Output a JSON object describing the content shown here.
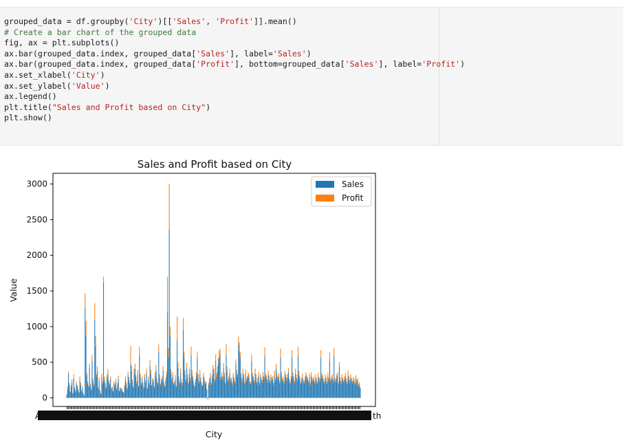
{
  "code": {
    "lines": [
      [
        {
          "t": "grouped_data = df.groupby(",
          "c": "n"
        },
        {
          "t": "'City'",
          "c": "s"
        },
        {
          "t": ")[[",
          "c": "n"
        },
        {
          "t": "'Sales'",
          "c": "s"
        },
        {
          "t": ", ",
          "c": "n"
        },
        {
          "t": "'Profit'",
          "c": "s"
        },
        {
          "t": "]].mean()",
          "c": "n"
        }
      ],
      [
        {
          "t": "# Create a bar chart of the grouped data",
          "c": "c"
        }
      ],
      [
        {
          "t": "fig, ax = plt.subplots()",
          "c": "n"
        }
      ],
      [
        {
          "t": "ax.bar(grouped_data.index, grouped_data[",
          "c": "n"
        },
        {
          "t": "'Sales'",
          "c": "s"
        },
        {
          "t": "], label=",
          "c": "n"
        },
        {
          "t": "'Sales'",
          "c": "s"
        },
        {
          "t": ")",
          "c": "n"
        }
      ],
      [
        {
          "t": "ax.bar(grouped_data.index, grouped_data[",
          "c": "n"
        },
        {
          "t": "'Profit'",
          "c": "s"
        },
        {
          "t": "], bottom=grouped_data[",
          "c": "n"
        },
        {
          "t": "'Sales'",
          "c": "s"
        },
        {
          "t": "], label=",
          "c": "n"
        },
        {
          "t": "'Profit'",
          "c": "s"
        },
        {
          "t": ")",
          "c": "n"
        }
      ],
      [
        {
          "t": "ax.set_xlabel(",
          "c": "n"
        },
        {
          "t": "'City'",
          "c": "s"
        },
        {
          "t": ")",
          "c": "n"
        }
      ],
      [
        {
          "t": "ax.set_ylabel(",
          "c": "n"
        },
        {
          "t": "'Value'",
          "c": "s"
        },
        {
          "t": ")",
          "c": "n"
        }
      ],
      [
        {
          "t": "ax.legend()",
          "c": "n"
        }
      ],
      [
        {
          "t": "plt.title(",
          "c": "n"
        },
        {
          "t": "\"Sales and Profit based on City\"",
          "c": "s"
        },
        {
          "t": ")",
          "c": "n"
        }
      ],
      [
        {
          "t": "plt.show()",
          "c": "n"
        }
      ]
    ]
  },
  "chart_data": {
    "type": "bar",
    "stacked": true,
    "title": "Sales and Profit based on City",
    "xlabel": "City",
    "ylabel": "Value",
    "ylim": [
      -120,
      3150
    ],
    "yticks": [
      0,
      500,
      1000,
      1500,
      2000,
      2500,
      3000
    ],
    "legend": "top-right",
    "series": [
      {
        "name": "Sales",
        "color": "#1f77b4"
      },
      {
        "name": "Profit",
        "color": "#ff7f0e"
      }
    ],
    "xtick_text_left": "A",
    "xtick_text_right": "th",
    "sales": [
      40,
      120,
      340,
      190,
      80,
      150,
      220,
      60,
      270,
      130,
      90,
      200,
      160,
      110,
      70,
      250,
      180,
      95,
      140,
      60,
      30,
      1260,
      880,
      310,
      200,
      150,
      420,
      170,
      110,
      520,
      230,
      160,
      1090,
      720,
      290,
      380,
      130,
      240,
      90,
      50,
      290,
      200,
      1620,
      260,
      190,
      130,
      280,
      340,
      220,
      170,
      260,
      120,
      140,
      90,
      200,
      160,
      230,
      110,
      180,
      260,
      90,
      130,
      120,
      110,
      80,
      70,
      150,
      260,
      190,
      120,
      320,
      250,
      180,
      480,
      380,
      220,
      140,
      350,
      410,
      280,
      200,
      330,
      150,
      600,
      290,
      180,
      260,
      190,
      130,
      280,
      210,
      350,
      120,
      260,
      180,
      450,
      330,
      160,
      240,
      220,
      140,
      310,
      390,
      230,
      180,
      640,
      280,
      170,
      220,
      260,
      380,
      190,
      150,
      240,
      320,
      1200,
      570,
      2360,
      860,
      340,
      240,
      310,
      180,
      200,
      270,
      150,
      810,
      420,
      260,
      190,
      350,
      220,
      180,
      950,
      560,
      330,
      220,
      420,
      280,
      190,
      350,
      240,
      600,
      330,
      260,
      190,
      150,
      220,
      310,
      550,
      280,
      200,
      330,
      240,
      180,
      160,
      300,
      250,
      190,
      200,
      110,
      -20,
      180,
      240,
      300,
      180,
      270,
      400,
      350,
      220,
      520,
      290,
      370,
      480,
      560,
      600,
      250,
      310,
      260,
      420,
      300,
      190,
      600,
      370,
      220,
      260,
      350,
      230,
      240,
      180,
      300,
      250,
      200,
      470,
      330,
      290,
      750,
      660,
      560,
      290,
      220,
      350,
      280,
      190,
      340,
      230,
      260,
      310,
      280,
      200,
      190,
      520,
      300,
      260,
      210,
      350,
      280,
      190,
      240,
      310,
      180,
      280,
      250,
      210,
      310,
      260,
      580,
      290,
      270,
      210,
      330,
      260,
      200,
      280,
      250,
      260,
      180,
      320,
      230,
      410,
      290,
      260,
      290,
      200,
      570,
      310,
      230,
      260,
      200,
      320,
      280,
      240,
      290,
      360,
      230,
      190,
      260,
      560,
      310,
      260,
      200,
      350,
      280,
      230,
      600,
      320,
      260,
      190,
      240,
      290,
      220,
      200,
      260,
      310,
      270,
      240,
      210,
      290,
      180,
      310,
      250,
      230,
      260,
      200,
      280,
      240,
      190,
      300,
      250,
      230,
      560,
      300,
      270,
      230,
      200,
      280,
      250,
      190,
      300,
      240,
      520,
      220,
      260,
      280,
      210,
      590,
      240,
      220,
      280,
      310,
      190,
      430,
      250,
      200,
      280,
      240,
      210,
      260,
      300,
      230,
      190,
      320,
      260,
      210,
      280,
      240,
      200,
      250,
      230,
      180,
      270,
      210,
      240,
      160,
      190,
      130
    ],
    "profit": [
      10,
      40,
      30,
      20,
      10,
      30,
      40,
      10,
      60,
      20,
      10,
      30,
      20,
      20,
      10,
      50,
      30,
      10,
      20,
      10,
      5,
      210,
      200,
      40,
      30,
      20,
      60,
      30,
      20,
      80,
      40,
      30,
      240,
      150,
      40,
      60,
      20,
      40,
      20,
      10,
      50,
      30,
      80,
      40,
      30,
      20,
      40,
      60,
      30,
      30,
      40,
      20,
      20,
      10,
      30,
      30,
      40,
      20,
      30,
      50,
      10,
      20,
      20,
      20,
      10,
      10,
      30,
      40,
      30,
      20,
      50,
      40,
      30,
      250,
      70,
      40,
      20,
      60,
      70,
      40,
      30,
      60,
      20,
      120,
      50,
      30,
      40,
      30,
      20,
      50,
      30,
      60,
      20,
      40,
      30,
      80,
      60,
      20,
      40,
      40,
      20,
      50,
      70,
      40,
      30,
      110,
      50,
      30,
      40,
      40,
      60,
      30,
      20,
      40,
      50,
      500,
      130,
      640,
      140,
      60,
      40,
      50,
      30,
      30,
      50,
      20,
      330,
      80,
      40,
      30,
      60,
      40,
      30,
      170,
      90,
      60,
      40,
      70,
      50,
      30,
      60,
      40,
      120,
      60,
      40,
      30,
      20,
      40,
      50,
      100,
      50,
      30,
      60,
      40,
      30,
      20,
      50,
      40,
      30,
      30,
      20,
      20,
      30,
      40,
      50,
      30,
      50,
      60,
      60,
      40,
      90,
      50,
      70,
      80,
      100,
      90,
      40,
      50,
      40,
      70,
      50,
      30,
      150,
      70,
      40,
      40,
      60,
      40,
      40,
      30,
      50,
      40,
      30,
      70,
      60,
      50,
      110,
      120,
      80,
      50,
      40,
      60,
      50,
      30,
      60,
      40,
      40,
      50,
      50,
      30,
      30,
      90,
      50,
      40,
      30,
      60,
      50,
      30,
      40,
      50,
      30,
      50,
      40,
      40,
      50,
      40,
      130,
      50,
      40,
      40,
      50,
      50,
      30,
      50,
      40,
      40,
      30,
      60,
      40,
      70,
      50,
      40,
      50,
      30,
      120,
      50,
      40,
      40,
      30,
      60,
      50,
      40,
      50,
      60,
      40,
      30,
      40,
      110,
      50,
      40,
      30,
      60,
      50,
      40,
      120,
      60,
      40,
      30,
      40,
      50,
      40,
      30,
      40,
      50,
      50,
      40,
      30,
      50,
      30,
      50,
      40,
      40,
      40,
      30,
      50,
      40,
      30,
      50,
      40,
      40,
      110,
      50,
      50,
      40,
      30,
      50,
      40,
      30,
      50,
      40,
      120,
      40,
      40,
      50,
      40,
      110,
      40,
      40,
      50,
      50,
      30,
      70,
      40,
      30,
      50,
      40,
      40,
      40,
      50,
      40,
      30,
      60,
      40,
      40,
      50,
      40,
      30,
      40,
      40,
      30,
      50,
      40,
      40,
      30,
      30,
      20
    ]
  }
}
